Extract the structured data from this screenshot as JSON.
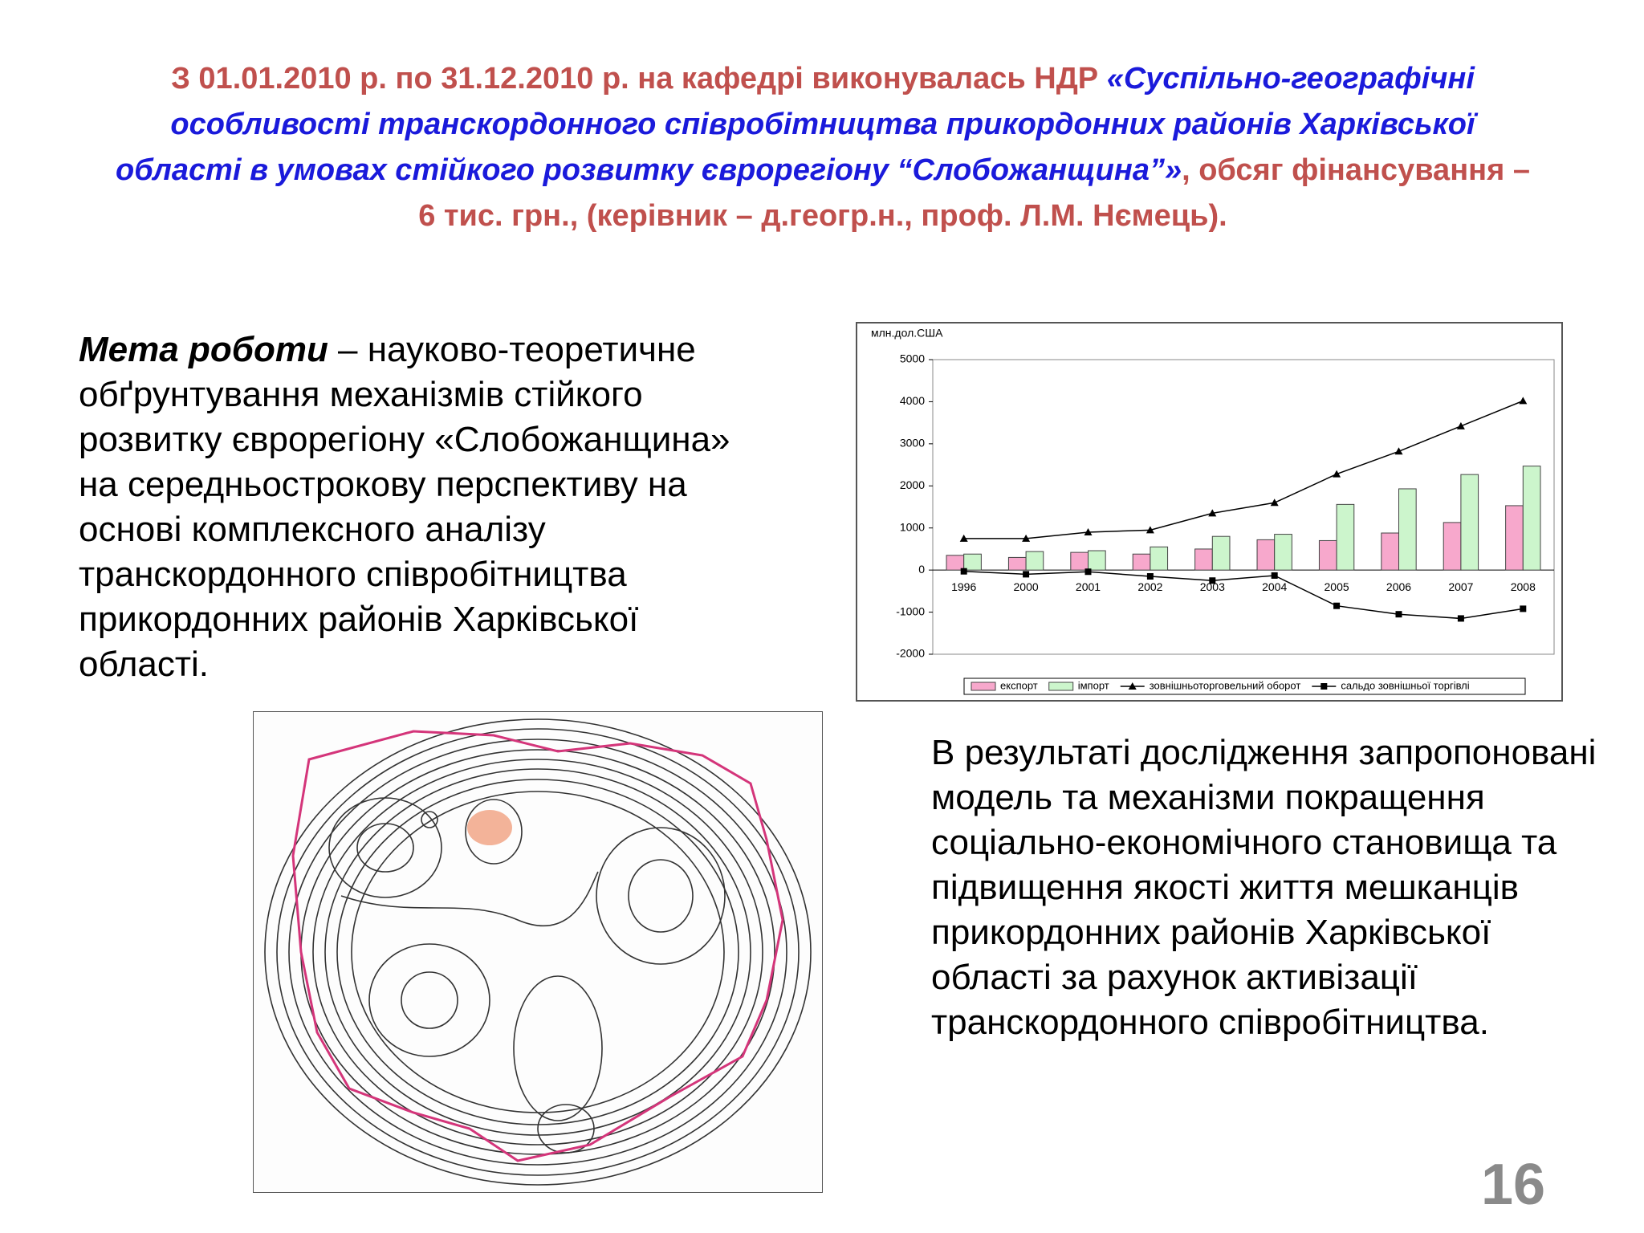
{
  "header": {
    "title": [
      "З 01.01.2010 р. по 31.12.2010 р. на кафедрі виконувалась НДР ",
      "«Суспільно-географічні особливості транскордонного співробітництва прикордонних районів Харківської області в умовах стійкого розвитку єврорегіону “Слобожанщина”»",
      ", обсяг фінансування – 6 тис. грн., (керівник – д.геогр.н., проф. Л.М. Нємець)."
    ]
  },
  "left_text": {
    "lead": "Мета роботи",
    "body": " – науково-теоретичне обґрунтування механізмів стійкого розвитку єврорегіону «Слобожанщина» на середньострокову перспективу на основі комплексного аналізу транскордонного співробітництва прикордонних районів Харківської області."
  },
  "right_text": "В результаті дослідження запропоновані модель та механізми покращення соціально-економічного становища та підвищення якості життя мешканців прикордонних районів Харківської області за рахунок активізації транскордонного співробітництва.",
  "page_number": "16",
  "chart_data": {
    "type": "bar",
    "y_label": "млн.дол.США",
    "categories": [
      "1996",
      "2000",
      "2001",
      "2002",
      "2003",
      "2004",
      "2005",
      "2006",
      "2007",
      "2008"
    ],
    "series": [
      {
        "name": "експорт",
        "type": "bar",
        "color": "#f7a8cc",
        "values": [
          350,
          300,
          420,
          380,
          500,
          720,
          700,
          880,
          1130,
          1530
        ]
      },
      {
        "name": "імпорт",
        "type": "bar",
        "color": "#ccf5cc",
        "values": [
          380,
          440,
          460,
          550,
          800,
          850,
          1560,
          1930,
          2270,
          2470
        ]
      },
      {
        "name": "зовнішньоторговельний оборот",
        "type": "line",
        "marker": "triangle",
        "color": "#000000",
        "values": [
          750,
          750,
          900,
          950,
          1350,
          1600,
          2280,
          2820,
          3420,
          4020
        ]
      },
      {
        "name": "сальдо зовнішньої торгівлі",
        "type": "line",
        "marker": "square",
        "color": "#000000",
        "values": [
          -30,
          -100,
          -40,
          -150,
          -250,
          -130,
          -850,
          -1050,
          -1150,
          -920
        ]
      }
    ],
    "ylim": [
      -2000,
      5000
    ],
    "yticks": [
      -2000,
      -1000,
      0,
      1000,
      2000,
      3000,
      4000,
      5000
    ],
    "grid": false
  }
}
